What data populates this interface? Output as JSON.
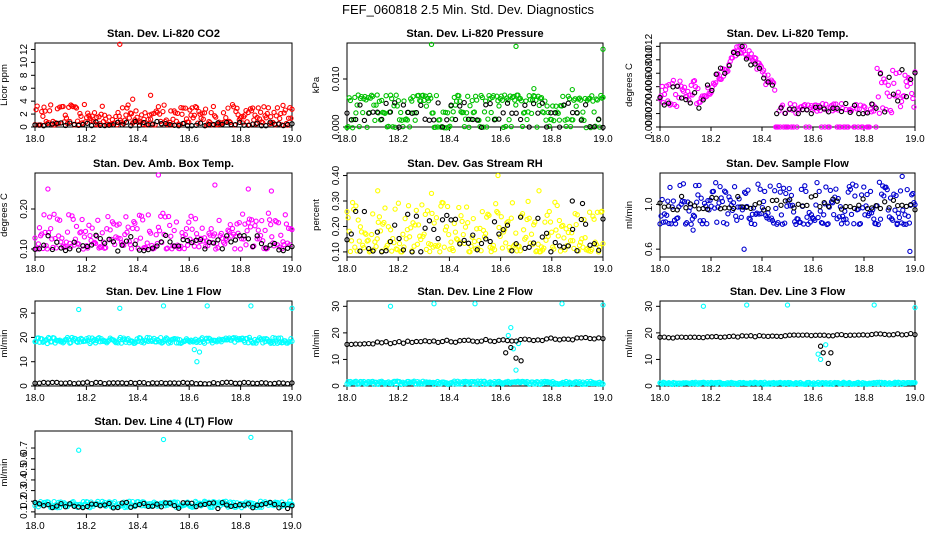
{
  "page_title": "FEF_060818  2.5 Min. Std. Dev. Diagnostics",
  "colors": {
    "axis": "#000000",
    "reference_series": "#000000"
  },
  "chart_data": [
    {
      "type": "scatter",
      "title": "Stan. Dev. Li-820 CO2",
      "ylabel": "Licor ppm",
      "xlim": [
        18.0,
        19.0
      ],
      "ylim": [
        0,
        13
      ],
      "xticks": [
        "18.0",
        "18.2",
        "18.4",
        "18.6",
        "18.8",
        "19.0"
      ],
      "yticks": [
        "0",
        "2",
        "4",
        "6",
        "8",
        "10",
        "12"
      ],
      "xtick_values": [
        18.0,
        18.2,
        18.4,
        18.6,
        18.8,
        19.0
      ],
      "ytick_values": [
        0,
        2,
        4,
        6,
        8,
        10,
        12
      ],
      "series": [
        {
          "name": "main",
          "color": "#ff0000",
          "min": 0.3,
          "max": 3.5,
          "mode": "spread",
          "outliers": [
            [
              18.33,
              12.8
            ],
            [
              18.45,
              4.9
            ],
            [
              18.38,
              4.3
            ]
          ]
        },
        {
          "name": "reference",
          "color": "#000000",
          "min": 0.2,
          "max": 0.9,
          "mode": "spread",
          "outliers": []
        }
      ]
    },
    {
      "type": "scatter",
      "title": "Stan. Dev. Li-820 Pressure",
      "ylabel": "kPa",
      "xlim": [
        18.0,
        19.0
      ],
      "ylim": [
        0,
        0.0175
      ],
      "xticks": [
        "18.0",
        "18.2",
        "18.4",
        "18.6",
        "18.8",
        "19.0"
      ],
      "yticks": [
        "0.000",
        "0.010"
      ],
      "xtick_values": [
        18.0,
        18.2,
        18.4,
        18.6,
        18.8,
        19.0
      ],
      "ytick_values": [
        0,
        0.01
      ],
      "series": [
        {
          "name": "main",
          "color": "#00c000",
          "min": 0.0,
          "max": 0.007,
          "mode": "banded",
          "levels": [
            0.0,
            0.0015,
            0.003,
            0.0045,
            0.0055,
            0.006,
            0.0065
          ],
          "outliers": [
            [
              18.33,
              0.0172
            ],
            [
              18.66,
              0.0168
            ],
            [
              19.0,
              0.0162
            ],
            [
              18.88,
              0.0078
            ],
            [
              18.73,
              0.008
            ]
          ]
        },
        {
          "name": "reference",
          "color": "#000000",
          "min": 0.0,
          "max": 0.0055,
          "mode": "banded",
          "levels": [
            0.0,
            0.0015,
            0.003,
            0.0045,
            0.005
          ],
          "outliers": []
        }
      ]
    },
    {
      "type": "scatter",
      "title": "Stan. Dev. Li-820 Temp.",
      "ylabel": "degrees C",
      "xlim": [
        18.0,
        19.0
      ],
      "ylim": [
        0,
        0.0125
      ],
      "xticks": [
        "18.0",
        "18.2",
        "18.4",
        "18.6",
        "18.8",
        "19.0"
      ],
      "yticks": [
        "0.000",
        "0.002",
        "0.004",
        "0.006",
        "0.008",
        "0.010",
        "0.012"
      ],
      "xtick_values": [
        18.0,
        18.2,
        18.4,
        18.6,
        18.8,
        19.0
      ],
      "ytick_values": [
        0,
        0.002,
        0.004,
        0.006,
        0.008,
        0.01,
        0.012
      ],
      "series": [
        {
          "name": "main",
          "color": "#ff00ff",
          "min": 0.0,
          "max": 0.012,
          "mode": "temp",
          "outliers": []
        },
        {
          "name": "reference",
          "color": "#000000",
          "min": 0.002,
          "max": 0.012,
          "mode": "temp",
          "outliers": []
        }
      ]
    },
    {
      "type": "scatter",
      "title": "Stan. Dev. Amb. Box Temp.",
      "ylabel": "degrees C",
      "xlim": [
        18.0,
        19.0
      ],
      "ylim": [
        0.08,
        0.29
      ],
      "xticks": [
        "18.0",
        "18.2",
        "18.4",
        "18.6",
        "18.8",
        "19.0"
      ],
      "yticks": [
        "0.10",
        "0.20"
      ],
      "xtick_values": [
        18.0,
        18.2,
        18.4,
        18.6,
        18.8,
        19.0
      ],
      "ytick_values": [
        0.1,
        0.2
      ],
      "series": [
        {
          "name": "main",
          "color": "#ff00ff",
          "min": 0.1,
          "max": 0.19,
          "mode": "spread",
          "outliers": [
            [
              18.48,
              0.285
            ],
            [
              18.05,
              0.25
            ],
            [
              18.7,
              0.26
            ],
            [
              18.83,
              0.25
            ],
            [
              18.92,
              0.245
            ]
          ]
        },
        {
          "name": "reference",
          "color": "#000000",
          "min": 0.095,
          "max": 0.135,
          "mode": "spread",
          "outliers": []
        }
      ]
    },
    {
      "type": "scatter",
      "title": "Stan. Dev. Gas Stream RH",
      "ylabel": "percent",
      "xlim": [
        18.0,
        19.0
      ],
      "ylim": [
        0.08,
        0.41
      ],
      "xticks": [
        "18.0",
        "18.2",
        "18.4",
        "18.6",
        "18.8",
        "19.0"
      ],
      "yticks": [
        "0.10",
        "0.20",
        "0.30",
        "0.40"
      ],
      "xtick_values": [
        18.0,
        18.2,
        18.4,
        18.6,
        18.8,
        19.0
      ],
      "ytick_values": [
        0.1,
        0.2,
        0.3,
        0.4
      ],
      "series": [
        {
          "name": "main",
          "color": "#ffff00",
          "min": 0.1,
          "max": 0.3,
          "mode": "spread",
          "outliers": [
            [
              18.59,
              0.4
            ],
            [
              18.12,
              0.34
            ],
            [
              18.33,
              0.33
            ],
            [
              18.75,
              0.34
            ]
          ]
        },
        {
          "name": "reference",
          "color": "#000000",
          "min": 0.1,
          "max": 0.26,
          "mode": "spread",
          "outliers": [
            [
              18.88,
              0.3
            ],
            [
              18.92,
              0.29
            ]
          ]
        }
      ]
    },
    {
      "type": "scatter",
      "title": "Stan. Dev. Sample Flow",
      "ylabel": "ml/min",
      "xlim": [
        18.0,
        19.0
      ],
      "ylim": [
        0.53,
        1.28
      ],
      "xticks": [
        "18.0",
        "18.2",
        "18.4",
        "18.6",
        "18.8",
        "19.0"
      ],
      "yticks": [
        "0.6",
        "1.0"
      ],
      "xtick_values": [
        18.0,
        18.2,
        18.4,
        18.6,
        18.8,
        19.0
      ],
      "ytick_values": [
        0.6,
        1.0
      ],
      "series": [
        {
          "name": "main",
          "color": "#0000d0",
          "min": 0.82,
          "max": 1.2,
          "mode": "spread",
          "outliers": [
            [
              18.33,
              0.6
            ],
            [
              18.93,
              0.82
            ],
            [
              18.95,
              1.25
            ],
            [
              18.98,
              0.58
            ],
            [
              18.13,
              0.77
            ]
          ]
        },
        {
          "name": "reference",
          "color": "#000000",
          "min": 0.95,
          "max": 1.08,
          "mode": "spread",
          "outliers": []
        }
      ]
    },
    {
      "type": "scatter",
      "title": "Stan. Dev. Line 1 Flow",
      "ylabel": "ml/min",
      "xlim": [
        18.0,
        19.0
      ],
      "ylim": [
        0,
        35
      ],
      "xticks": [
        "18.0",
        "18.2",
        "18.4",
        "18.6",
        "18.8",
        "19.0"
      ],
      "yticks": [
        "0",
        "10",
        "20",
        "30"
      ],
      "xtick_values": [
        18.0,
        18.2,
        18.4,
        18.6,
        18.8,
        19.0
      ],
      "ytick_values": [
        0,
        10,
        20,
        30
      ],
      "series": [
        {
          "name": "main",
          "color": "#00ffff",
          "min": 17.5,
          "max": 20.0,
          "mode": "band",
          "outliers": [
            [
              18.17,
              31.5
            ],
            [
              18.33,
              32.0
            ],
            [
              18.5,
              33.0
            ],
            [
              18.67,
              33.0
            ],
            [
              18.84,
              33.0
            ],
            [
              19.0,
              32.0
            ],
            [
              18.62,
              15.0
            ],
            [
              18.63,
              10.0
            ],
            [
              18.64,
              14.0
            ]
          ]
        },
        {
          "name": "reference",
          "color": "#000000",
          "min": 0.9,
          "max": 1.6,
          "mode": "band",
          "outliers": []
        }
      ]
    },
    {
      "type": "scatter",
      "title": "Stan. Dev. Line 2 Flow",
      "ylabel": "ml/min",
      "xlim": [
        18.0,
        19.0
      ],
      "ylim": [
        0,
        32
      ],
      "xticks": [
        "18.0",
        "18.2",
        "18.4",
        "18.6",
        "18.8",
        "19.0"
      ],
      "yticks": [
        "0",
        "10",
        "20",
        "30"
      ],
      "xtick_values": [
        18.0,
        18.2,
        18.4,
        18.6,
        18.8,
        19.0
      ],
      "ytick_values": [
        0,
        10,
        20,
        30
      ],
      "series": [
        {
          "name": "main",
          "color": "#00ffff",
          "min": 0.6,
          "max": 1.8,
          "mode": "band",
          "outliers": [
            [
              18.17,
              30.0
            ],
            [
              18.34,
              31.0
            ],
            [
              18.5,
              31.0
            ],
            [
              18.84,
              31.0
            ],
            [
              19.0,
              30.5
            ],
            [
              18.64,
              22.0
            ],
            [
              18.65,
              14.0
            ],
            [
              18.66,
              6.0
            ],
            [
              18.63,
              19.0
            ],
            [
              18.67,
              16.0
            ]
          ]
        },
        {
          "name": "reference",
          "color": "#000000",
          "min": 15.5,
          "max": 18.5,
          "mode": "ramp",
          "outliers": [
            [
              18.62,
              12.5
            ],
            [
              18.64,
              14.5
            ],
            [
              18.66,
              10.5
            ],
            [
              18.68,
              9.5
            ]
          ]
        }
      ]
    },
    {
      "type": "scatter",
      "title": "Stan. Dev. Line 3 Flow",
      "ylabel": "ml/min",
      "xlim": [
        18.0,
        19.0
      ],
      "ylim": [
        0,
        32
      ],
      "xticks": [
        "18.0",
        "18.2",
        "18.4",
        "18.6",
        "18.8",
        "19.0"
      ],
      "yticks": [
        "0",
        "10",
        "20",
        "30"
      ],
      "xtick_values": [
        18.0,
        18.2,
        18.4,
        18.6,
        18.8,
        19.0
      ],
      "ytick_values": [
        0,
        10,
        20,
        30
      ],
      "series": [
        {
          "name": "main",
          "color": "#00ffff",
          "min": 0.6,
          "max": 1.4,
          "mode": "band",
          "outliers": [
            [
              18.17,
              30.0
            ],
            [
              18.34,
              30.5
            ],
            [
              18.5,
              30.5
            ],
            [
              18.84,
              30.5
            ],
            [
              19.0,
              29.5
            ],
            [
              18.62,
              12.0
            ],
            [
              18.63,
              10.0
            ],
            [
              18.65,
              15.5
            ]
          ]
        },
        {
          "name": "reference",
          "color": "#000000",
          "min": 18.0,
          "max": 19.8,
          "mode": "ramp",
          "outliers": [
            [
              18.63,
              15.0
            ],
            [
              18.64,
              12.5
            ],
            [
              18.66,
              8.5
            ],
            [
              18.67,
              12.5
            ]
          ]
        }
      ]
    },
    {
      "type": "scatter",
      "title": "Stan. Dev. Line 4 (LT) Flow",
      "ylabel": "ml/min",
      "xlim": [
        18.0,
        19.0
      ],
      "ylim": [
        0.08,
        0.86
      ],
      "xticks": [
        "18.0",
        "18.2",
        "18.4",
        "18.6",
        "18.8",
        "19.0"
      ],
      "yticks": [
        "0.1",
        "0.2",
        "0.3",
        "0.4",
        "0.5",
        "0.6",
        "0.7"
      ],
      "xtick_values": [
        18.0,
        18.2,
        18.4,
        18.6,
        18.8,
        19.0
      ],
      "ytick_values": [
        0.1,
        0.2,
        0.3,
        0.4,
        0.5,
        0.6,
        0.7
      ],
      "series": [
        {
          "name": "main",
          "color": "#00ffff",
          "min": 0.14,
          "max": 0.2,
          "mode": "band",
          "outliers": [
            [
              18.17,
              0.68
            ],
            [
              18.5,
              0.78
            ],
            [
              18.84,
              0.8
            ]
          ]
        },
        {
          "name": "reference",
          "color": "#000000",
          "min": 0.13,
          "max": 0.19,
          "mode": "band",
          "outliers": []
        }
      ]
    }
  ]
}
